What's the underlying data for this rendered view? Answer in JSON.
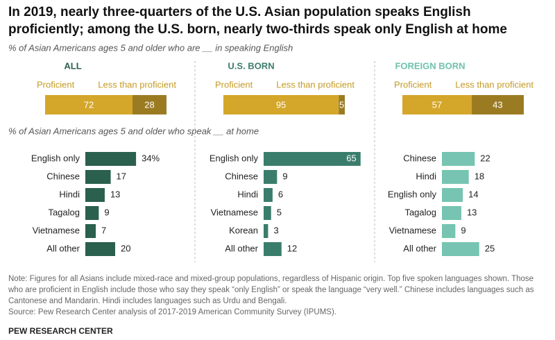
{
  "title": [
    "In 2019, nearly three-quarters of the U.S. Asian population speaks English",
    "proficiently; among the U.S. born, nearly two-thirds speak only English at home"
  ],
  "subtitle": "% of Asian Americans ages 5 and older who are __ in speaking English",
  "subtitle_home": "% of Asian Americans ages 5 and older who speak __ at home",
  "note": "Note: Figures for all Asians include mixed-race and mixed-group populations, regardless of Hispanic origin. Top five spoken languages shown. Those who are proficient in English include those who say they speak “only English” or speak the language “very well.” Chinese includes languages such as Cantonese and Mandarin. Hindi includes languages such as Urdu and Bengali.",
  "source": "Source: Pew Research Center analysis of 2017-2019 American Community Survey (IPUMS).",
  "brand": "PEW RESEARCH CENTER",
  "chart_data": [
    {
      "type": "stacked_bar",
      "title": "ALL",
      "title_color": "#2b5f4e",
      "series": [
        {
          "name": "Proficient",
          "color": "#d4a62a",
          "values": [
            72
          ]
        },
        {
          "name": "Less than proficient",
          "color": "#9b7b22",
          "values": [
            28
          ]
        }
      ]
    },
    {
      "type": "stacked_bar",
      "title": "U.S. BORN",
      "title_color": "#3b7d6c",
      "series": [
        {
          "name": "Proficient",
          "color": "#d4a62a",
          "values": [
            95
          ]
        },
        {
          "name": "Less than proficient",
          "color": "#9b7b22",
          "values": [
            5
          ]
        }
      ]
    },
    {
      "type": "stacked_bar",
      "title": "FOREIGN BORN",
      "title_color": "#6fc2ad",
      "series": [
        {
          "name": "Proficient",
          "color": "#d4a62a",
          "values": [
            57
          ]
        },
        {
          "name": "Less than proficient",
          "color": "#9b7b22",
          "values": [
            43
          ]
        }
      ]
    },
    {
      "type": "hbar",
      "color": "#2b5f4e",
      "categories": [
        "English only",
        "Chinese",
        "Hindi",
        "Tagalog",
        "Vietnamese",
        "All other"
      ],
      "values": [
        34,
        17,
        13,
        9,
        7,
        20
      ],
      "value_labels": [
        "34%",
        "17",
        "13",
        "9",
        "7",
        "20"
      ]
    },
    {
      "type": "hbar",
      "color": "#3b7d6c",
      "categories": [
        "English only",
        "Chinese",
        "Hindi",
        "Vietnamese",
        "Korean",
        "All other"
      ],
      "values": [
        65,
        9,
        6,
        5,
        3,
        12
      ]
    },
    {
      "type": "hbar",
      "color": "#76c4b1",
      "categories": [
        "Chinese",
        "Hindi",
        "English only",
        "Tagalog",
        "Vietnamese",
        "All other"
      ],
      "values": [
        22,
        18,
        14,
        13,
        9,
        25
      ]
    }
  ]
}
